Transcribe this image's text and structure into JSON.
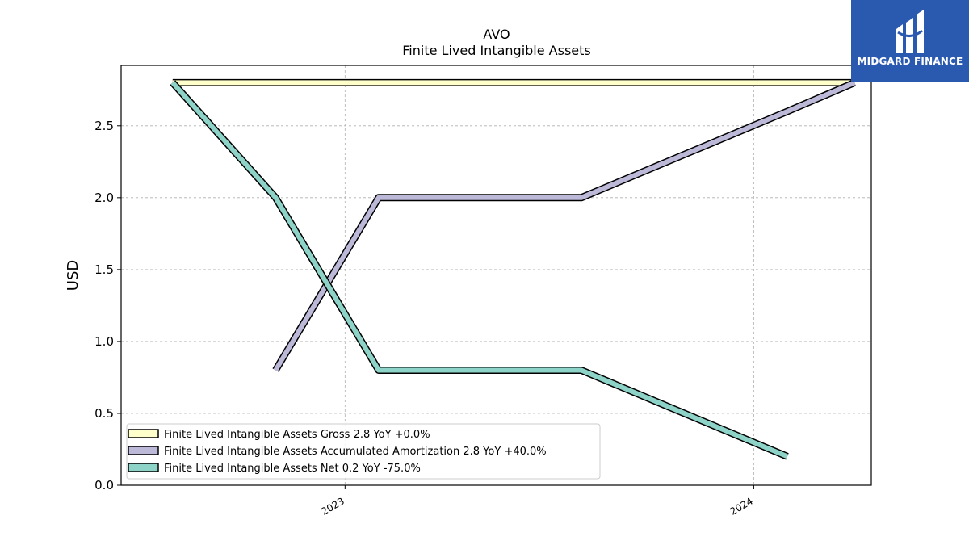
{
  "brand": {
    "name": "MIDGARD FINANCE",
    "icon": "midgard-logo-icon",
    "background": "#2a59b0"
  },
  "chart_data": {
    "type": "line",
    "title": "AVO",
    "subtitle": "Finite Lived Intangible Assets",
    "xlabel": "",
    "ylabel": "USD",
    "x_ticks": [
      "2023",
      "2024"
    ],
    "y_ticks": [
      "0.0",
      "0.5",
      "1.0",
      "1.5",
      "2.0",
      "2.5"
    ],
    "xlim": [
      "2022-06-15",
      "2024-04-15"
    ],
    "ylim": [
      0,
      2.92
    ],
    "grid": true,
    "legend_position": "bottom-left",
    "series": [
      {
        "name": "Finite Lived Intangible Assets Gross",
        "legend": "Finite Lived Intangible Assets Gross  2.8 YoY +0.0%",
        "color": "#ffffcc",
        "points": [
          {
            "x": "2022-07-31",
            "y": 2.8
          },
          {
            "x": "2024-03-31",
            "y": 2.8
          }
        ]
      },
      {
        "name": "Finite Lived Intangible Assets Accumulated Amortization",
        "legend": "Finite Lived Intangible Assets Accumulated Amortization  2.8 YoY +40.0%",
        "color": "#bcb8d8",
        "points": [
          {
            "x": "2022-10-31",
            "y": 0.8
          },
          {
            "x": "2023-01-31",
            "y": 2.0
          },
          {
            "x": "2023-07-31",
            "y": 2.0
          },
          {
            "x": "2023-10-31",
            "y": 2.3
          },
          {
            "x": "2024-01-31",
            "y": 2.6
          },
          {
            "x": "2024-03-31",
            "y": 2.8
          }
        ]
      },
      {
        "name": "Finite Lived Intangible Assets Net",
        "legend": "Finite Lived Intangible Assets Net  0.2 YoY -75.0%",
        "color": "#8dd3c7",
        "points": [
          {
            "x": "2022-07-31",
            "y": 2.8
          },
          {
            "x": "2022-10-31",
            "y": 2.0
          },
          {
            "x": "2023-01-31",
            "y": 0.8
          },
          {
            "x": "2023-07-31",
            "y": 0.8
          },
          {
            "x": "2024-01-31",
            "y": 0.2
          }
        ]
      }
    ]
  }
}
